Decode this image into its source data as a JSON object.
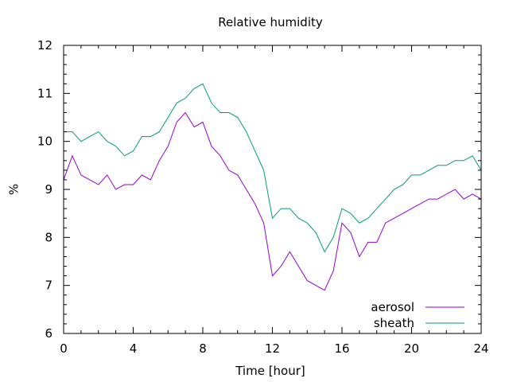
{
  "chart_data": {
    "type": "line",
    "title": "Relative humidity",
    "xlabel": "Time [hour]",
    "ylabel": "%",
    "xlim": [
      0,
      24
    ],
    "ylim": [
      6,
      12
    ],
    "x_ticks": [
      0,
      4,
      8,
      12,
      16,
      20,
      24
    ],
    "y_ticks": [
      6,
      7,
      8,
      9,
      10,
      11,
      12
    ],
    "grid": false,
    "legend_position": "bottom-right",
    "x": [
      0,
      0.5,
      1,
      1.5,
      2,
      2.5,
      3,
      3.5,
      4,
      4.5,
      5,
      5.5,
      6,
      6.5,
      7,
      7.5,
      8,
      8.5,
      9,
      9.5,
      10,
      10.5,
      11,
      11.5,
      12,
      12.5,
      13,
      13.5,
      14,
      14.5,
      15,
      15.5,
      16,
      16.5,
      17,
      17.5,
      18,
      18.5,
      19,
      19.5,
      20,
      20.5,
      21,
      21.5,
      22,
      22.5,
      23,
      23.5,
      24
    ],
    "series": [
      {
        "name": "aerosol",
        "color": "#9400d3",
        "values": [
          9.2,
          9.7,
          9.3,
          9.2,
          9.1,
          9.3,
          9.0,
          9.1,
          9.1,
          9.3,
          9.2,
          9.6,
          9.9,
          10.4,
          10.6,
          10.3,
          10.4,
          9.9,
          9.7,
          9.4,
          9.3,
          9.0,
          8.7,
          8.3,
          7.2,
          7.4,
          7.7,
          7.4,
          7.1,
          7.0,
          6.9,
          7.3,
          8.3,
          8.1,
          7.6,
          7.9,
          7.9,
          8.3,
          8.4,
          8.5,
          8.6,
          8.7,
          8.8,
          8.8,
          8.9,
          9.0,
          8.8,
          8.9,
          8.8
        ]
      },
      {
        "name": "sheath",
        "color": "#009e73",
        "values": [
          10.2,
          10.2,
          10.0,
          10.1,
          10.2,
          10.0,
          9.9,
          9.7,
          9.8,
          10.1,
          10.1,
          10.2,
          10.5,
          10.8,
          10.9,
          11.1,
          11.2,
          10.8,
          10.6,
          10.6,
          10.5,
          10.2,
          9.8,
          9.4,
          8.4,
          8.6,
          8.6,
          8.4,
          8.3,
          8.1,
          7.7,
          8.0,
          8.6,
          8.5,
          8.3,
          8.4,
          8.6,
          8.8,
          9.0,
          9.1,
          9.3,
          9.3,
          9.4,
          9.5,
          9.5,
          9.6,
          9.6,
          9.7,
          9.4
        ]
      }
    ]
  }
}
